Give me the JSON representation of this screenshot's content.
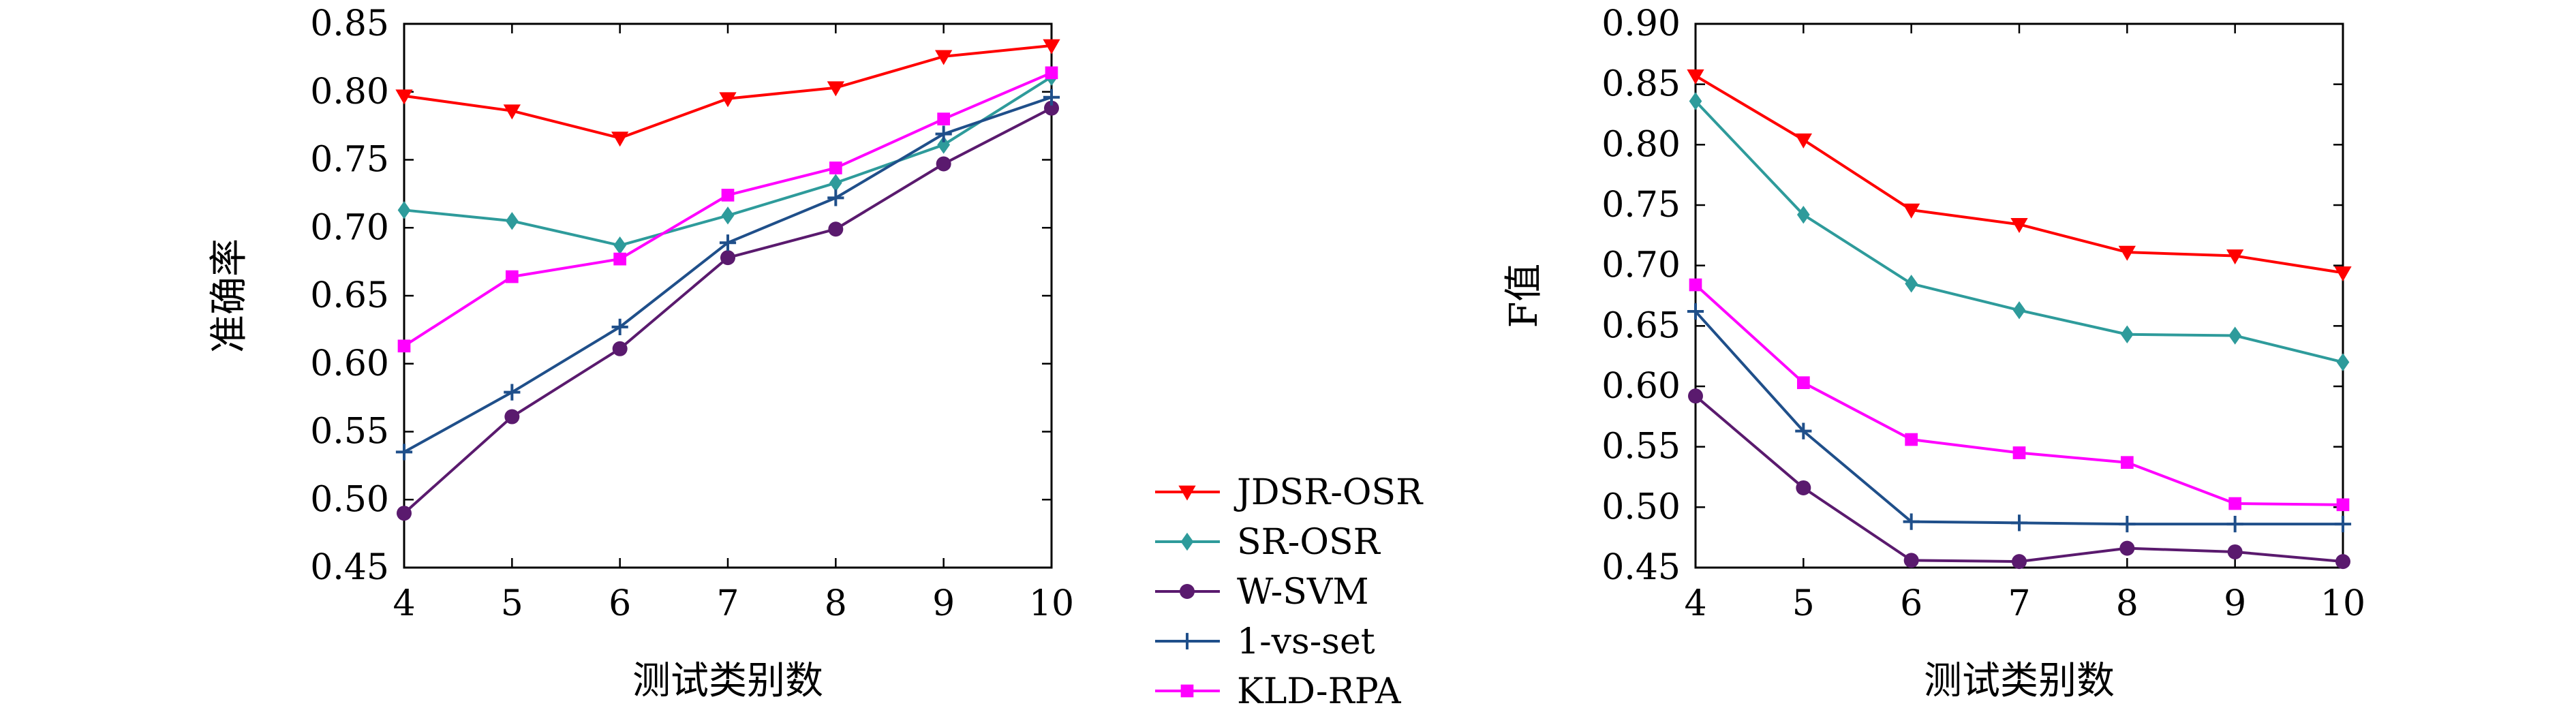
{
  "legend": [
    {
      "name": "JDSR-OSR",
      "color": "#ff0000",
      "marker": "triangle-down"
    },
    {
      "name": "SR-OSR",
      "color": "#2e9b9b",
      "marker": "diamond"
    },
    {
      "name": "W-SVM",
      "color": "#5a1a6e",
      "marker": "circle"
    },
    {
      "name": "1-vs-set",
      "color": "#1f4f8a",
      "marker": "plus"
    },
    {
      "name": "KLD-RPA",
      "color": "#ff00ff",
      "marker": "square"
    }
  ],
  "chart_data": [
    {
      "type": "line",
      "xlabel": "测试类别数",
      "ylabel": "准确率",
      "x": [
        4,
        5,
        6,
        7,
        8,
        9,
        10
      ],
      "xlim": [
        4,
        10
      ],
      "ylim": [
        0.45,
        0.85
      ],
      "yticks": [
        "0.45",
        "0.50",
        "0.55",
        "0.60",
        "0.65",
        "0.70",
        "0.75",
        "0.80",
        "0.85"
      ],
      "grid": false,
      "series": [
        {
          "name": "JDSR-OSR",
          "values": [
            0.797,
            0.786,
            0.766,
            0.795,
            0.803,
            0.826,
            0.834
          ]
        },
        {
          "name": "SR-OSR",
          "values": [
            0.713,
            0.705,
            0.687,
            0.709,
            0.733,
            0.761,
            0.811
          ]
        },
        {
          "name": "W-SVM",
          "values": [
            0.49,
            0.561,
            0.611,
            0.678,
            0.699,
            0.747,
            0.788
          ]
        },
        {
          "name": "1-vs-set",
          "values": [
            0.535,
            0.579,
            0.627,
            0.689,
            0.722,
            0.769,
            0.796
          ]
        },
        {
          "name": "KLD-RPA",
          "values": [
            0.613,
            0.664,
            0.677,
            0.724,
            0.744,
            0.78,
            0.814
          ]
        }
      ]
    },
    {
      "type": "line",
      "xlabel": "测试类别数",
      "ylabel": "F值",
      "x": [
        4,
        5,
        6,
        7,
        8,
        9,
        10
      ],
      "xlim": [
        4,
        10
      ],
      "ylim": [
        0.45,
        0.9
      ],
      "yticks": [
        "0.45",
        "0.50",
        "0.55",
        "0.60",
        "0.65",
        "0.70",
        "0.75",
        "0.80",
        "0.85",
        "0.90"
      ],
      "grid": false,
      "series": [
        {
          "name": "JDSR-OSR",
          "values": [
            0.857,
            0.804,
            0.746,
            0.734,
            0.711,
            0.708,
            0.694
          ]
        },
        {
          "name": "SR-OSR",
          "values": [
            0.836,
            0.742,
            0.685,
            0.663,
            0.643,
            0.642,
            0.62
          ]
        },
        {
          "name": "W-SVM",
          "values": [
            0.592,
            0.516,
            0.456,
            0.455,
            0.466,
            0.463,
            0.455
          ]
        },
        {
          "name": "1-vs-set",
          "values": [
            0.662,
            0.563,
            0.488,
            0.487,
            0.486,
            0.486,
            0.486
          ]
        },
        {
          "name": "KLD-RPA",
          "values": [
            0.684,
            0.603,
            0.556,
            0.545,
            0.537,
            0.503,
            0.502
          ]
        }
      ]
    }
  ]
}
